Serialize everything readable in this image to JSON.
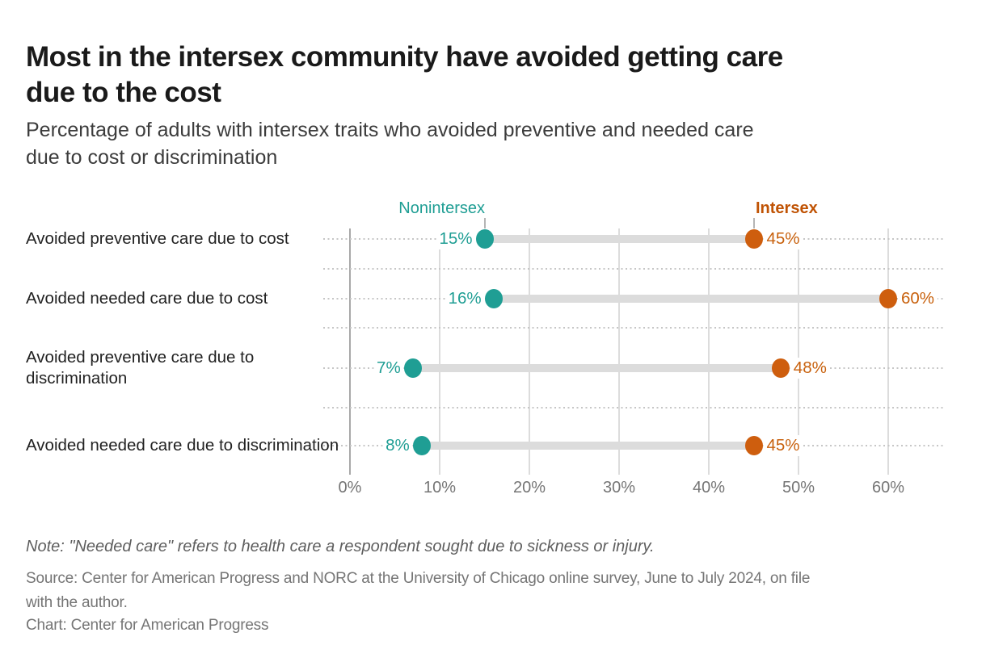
{
  "header": {
    "title_line1": "Most in the intersex community have avoided getting care",
    "title_line2": "due to the cost",
    "subtitle_line1": "Percentage of adults with intersex traits who avoided preventive and needed care",
    "subtitle_line2": "due to cost or discrimination"
  },
  "chart_data": {
    "type": "dumbbell",
    "title": "Most in the intersex community have avoided getting care due to the cost",
    "subtitle": "Percentage of adults with intersex traits who avoided preventive and needed care due to cost or discrimination",
    "categories": [
      "Avoided preventive care due to cost",
      "Avoided needed care due to cost",
      "Avoided preventive care due to discrimination",
      "Avoided needed care due to discrimination"
    ],
    "series": [
      {
        "name": "Nonintersex",
        "color": "#1f9e94",
        "values": [
          15,
          16,
          7,
          8
        ]
      },
      {
        "name": "Intersex",
        "color": "#ce5e0e",
        "values": [
          45,
          60,
          48,
          45
        ]
      }
    ],
    "value_suffix": "%",
    "x_ticks": [
      "0%",
      "10%",
      "20%",
      "30%",
      "40%",
      "50%",
      "60%"
    ],
    "x_tick_values": [
      0,
      10,
      20,
      30,
      40,
      50,
      60
    ],
    "xlim": [
      0,
      66
    ],
    "grid": "vertical-solid-plus-horizontal-dotted",
    "legend_position": "top-inline-over-first-row",
    "legend": {
      "nonintersex_label": "Nonintersex",
      "intersex_label": "Intersex",
      "nonintersex_color": "#1f9e94",
      "intersex_color": "#c05304"
    },
    "connector_color": "#dcdcdc"
  },
  "footer": {
    "note": "Note: \"Needed care\" refers to health care a respondent sought due to sickness or injury.",
    "source_line1": "Source: Center for American Progress and NORC at the University of Chicago online survey, June to July 2024, on file",
    "source_line2": "with the author.",
    "credit": "Chart: Center for American Progress"
  }
}
